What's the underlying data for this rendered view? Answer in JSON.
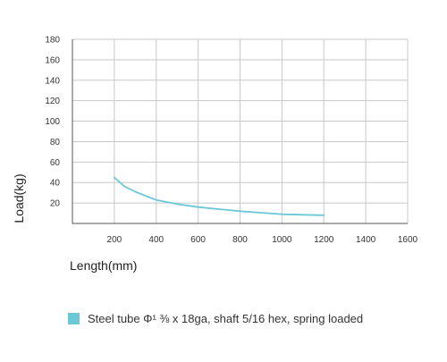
{
  "chart_data": {
    "type": "line",
    "xlabel": "Length(mm)",
    "ylabel": "Load(kg)",
    "xlim": [
      0,
      1600
    ],
    "ylim": [
      0,
      180
    ],
    "x_ticks": [
      200,
      400,
      600,
      800,
      1000,
      1200,
      1400,
      1600
    ],
    "y_ticks": [
      20,
      40,
      60,
      80,
      100,
      120,
      140,
      160,
      180
    ],
    "grid": true,
    "legend_position": "bottom",
    "series": [
      {
        "name": "Steel tube Φ¹ ⅜ x 18ga, shaft 5/16 hex, spring loaded",
        "color": "#6cc7d6",
        "x": [
          200,
          250,
          300,
          350,
          400,
          450,
          500,
          600,
          700,
          800,
          900,
          1000,
          1100,
          1200
        ],
        "y": [
          45,
          36,
          31,
          27,
          23,
          21,
          19,
          16,
          14,
          12,
          10.5,
          9,
          8.5,
          8
        ]
      }
    ]
  }
}
